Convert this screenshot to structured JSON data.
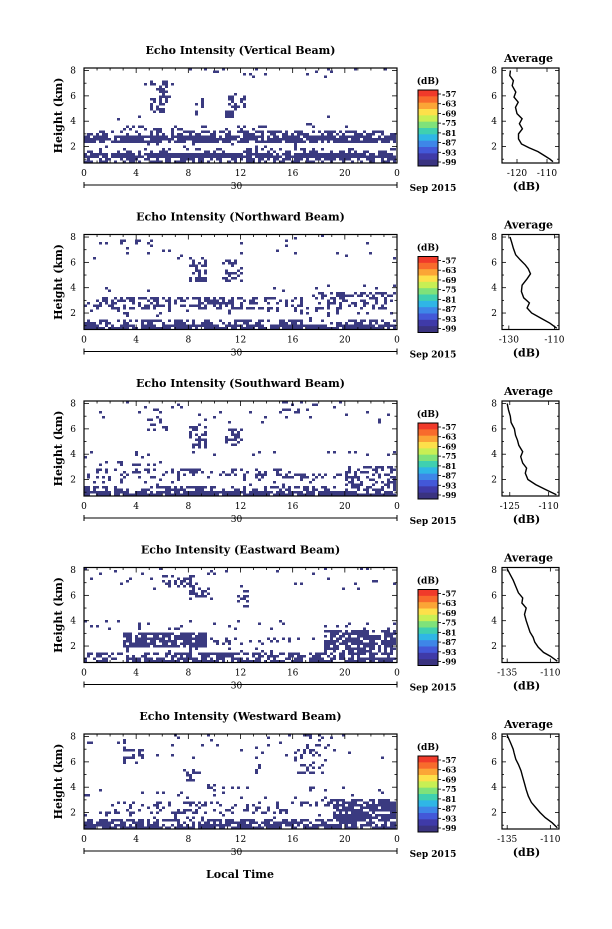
{
  "chart_data": {
    "type": "heatmap",
    "date_label": "Sep 2015",
    "day_label": "30",
    "shared_xlabel": "Local Time",
    "x_ticks": [
      "0",
      "4",
      "8",
      "12",
      "16",
      "20",
      "0"
    ],
    "x_range_hours": [
      0,
      24
    ],
    "y_ticks": [
      "2",
      "4",
      "6",
      "8"
    ],
    "y_range_km": [
      0.7,
      8.2
    ],
    "colorbar": {
      "unit": "(dB)",
      "ticks": [
        "-57",
        "-63",
        "-69",
        "-75",
        "-81",
        "-87",
        "-93",
        "-99"
      ],
      "colors": [
        "#f03a2a",
        "#f86b2c",
        "#fba536",
        "#fde04a",
        "#c8ef54",
        "#7fe27a",
        "#3fd0b0",
        "#2fb6e6",
        "#3e86e8",
        "#4358d8",
        "#3f3aa8",
        "#3a3380"
      ]
    },
    "fill_color": "#3a3a80",
    "panels": [
      {
        "title": "Echo Intensity (Vertical Beam)",
        "ylabel": "Height (km)",
        "avg_title": "Average",
        "avg_ticks": [
          "-120",
          "-110"
        ],
        "avg_xlabel": "(dB)",
        "avg_xlim": [
          -125,
          -106
        ],
        "avg_profile": [
          [
            -108,
            0.8
          ],
          [
            -109,
            1.0
          ],
          [
            -111,
            1.3
          ],
          [
            -113,
            1.6
          ],
          [
            -116,
            1.9
          ],
          [
            -118.5,
            2.2
          ],
          [
            -119.5,
            2.6
          ],
          [
            -119.5,
            3.0
          ],
          [
            -118.2,
            3.4
          ],
          [
            -119.2,
            3.8
          ],
          [
            -118.3,
            4.2
          ],
          [
            -120,
            4.6
          ],
          [
            -120.5,
            5.1
          ],
          [
            -119.6,
            5.5
          ],
          [
            -121,
            5.9
          ],
          [
            -120.4,
            6.3
          ],
          [
            -121.6,
            6.8
          ],
          [
            -121.2,
            7.2
          ],
          [
            -122.4,
            7.6
          ],
          [
            -122.2,
            8.0
          ]
        ],
        "blocks": [
          [
            0.0,
            24.0,
            0.7,
            1.05,
            0.55
          ],
          [
            0.0,
            24.0,
            1.05,
            1.45,
            0.92
          ],
          [
            0.0,
            24.0,
            1.45,
            1.8,
            0.35
          ],
          [
            0.0,
            10.0,
            1.8,
            2.2,
            0.08
          ],
          [
            8.0,
            18.0,
            1.8,
            2.2,
            0.15
          ],
          [
            0.0,
            24.0,
            2.2,
            2.8,
            0.82
          ],
          [
            0.0,
            24.0,
            2.8,
            3.3,
            0.5
          ],
          [
            3.0,
            14.0,
            3.3,
            3.7,
            0.22
          ],
          [
            13.0,
            23.0,
            3.4,
            3.9,
            0.12
          ],
          [
            0.0,
            24.0,
            4.0,
            4.4,
            0.03
          ],
          [
            5.0,
            6.4,
            4.6,
            7.2,
            0.4
          ],
          [
            8.5,
            9.3,
            4.4,
            5.8,
            0.55
          ],
          [
            10.8,
            11.8,
            4.3,
            6.2,
            0.5
          ],
          [
            11.8,
            12.4,
            4.8,
            6.0,
            0.35
          ],
          [
            2.0,
            8.0,
            5.8,
            8.0,
            0.02
          ],
          [
            8.0,
            14.0,
            7.4,
            8.2,
            0.08
          ],
          [
            17.0,
            24.0,
            7.2,
            8.2,
            0.04
          ]
        ]
      },
      {
        "title": "Echo Intensity (Northward Beam)",
        "ylabel": "Height (km)",
        "avg_title": "Average",
        "avg_ticks": [
          "-130",
          "-110"
        ],
        "avg_xlabel": "(dB)",
        "avg_xlim": [
          -133,
          -108
        ],
        "avg_profile": [
          [
            -109,
            0.8
          ],
          [
            -112,
            1.2
          ],
          [
            -116,
            1.6
          ],
          [
            -120,
            2.0
          ],
          [
            -122,
            2.4
          ],
          [
            -121,
            2.8
          ],
          [
            -123.5,
            3.2
          ],
          [
            -124.5,
            3.7
          ],
          [
            -124.2,
            4.2
          ],
          [
            -122,
            4.7
          ],
          [
            -120.5,
            5.1
          ],
          [
            -121.5,
            5.5
          ],
          [
            -122.8,
            5.8
          ],
          [
            -125,
            6.2
          ],
          [
            -127,
            6.6
          ],
          [
            -128,
            7.1
          ],
          [
            -128.8,
            7.6
          ],
          [
            -129.5,
            8.0
          ]
        ],
        "blocks": [
          [
            0.0,
            24.0,
            0.7,
            1.05,
            0.85
          ],
          [
            0.0,
            24.0,
            1.05,
            1.4,
            0.45
          ],
          [
            0.0,
            24.0,
            1.4,
            1.8,
            0.05
          ],
          [
            0.0,
            24.0,
            1.9,
            2.3,
            0.1
          ],
          [
            0.0,
            24.0,
            2.3,
            2.8,
            0.35
          ],
          [
            1.0,
            12.0,
            2.8,
            3.2,
            0.6
          ],
          [
            12.0,
            18.0,
            2.8,
            3.2,
            0.4
          ],
          [
            17.0,
            24.0,
            2.6,
            3.6,
            0.45
          ],
          [
            0.0,
            24.0,
            3.6,
            4.2,
            0.04
          ],
          [
            8.0,
            9.5,
            4.2,
            6.4,
            0.5
          ],
          [
            10.5,
            12.3,
            4.5,
            6.2,
            0.5
          ],
          [
            0.0,
            24.0,
            6.2,
            8.2,
            0.02
          ],
          [
            4.0,
            5.5,
            7.3,
            8.2,
            0.2
          ]
        ]
      },
      {
        "title": "Echo Intensity (Southward Beam)",
        "ylabel": "Height (km)",
        "avg_title": "Average",
        "avg_ticks": [
          "-125",
          "-110"
        ],
        "avg_xlabel": "(dB)",
        "avg_xlim": [
          -128,
          -106
        ],
        "avg_profile": [
          [
            -107,
            0.8
          ],
          [
            -111,
            1.2
          ],
          [
            -115,
            1.6
          ],
          [
            -118,
            2.0
          ],
          [
            -119,
            2.5
          ],
          [
            -118.5,
            2.9
          ],
          [
            -120,
            3.3
          ],
          [
            -120.8,
            3.8
          ],
          [
            -120,
            4.2
          ],
          [
            -121.5,
            4.7
          ],
          [
            -122,
            5.1
          ],
          [
            -122.8,
            5.5
          ],
          [
            -123.2,
            6.0
          ],
          [
            -124.5,
            6.5
          ],
          [
            -124.8,
            7.0
          ],
          [
            -125.5,
            7.5
          ],
          [
            -126,
            8.0
          ]
        ],
        "blocks": [
          [
            0.0,
            24.0,
            0.7,
            1.05,
            0.85
          ],
          [
            0.0,
            24.0,
            1.05,
            1.5,
            0.55
          ],
          [
            0.0,
            24.0,
            1.5,
            2.0,
            0.06
          ],
          [
            0.0,
            16.0,
            2.0,
            2.4,
            0.25
          ],
          [
            15.0,
            22.0,
            2.0,
            2.5,
            0.6
          ],
          [
            20.0,
            24.0,
            1.5,
            3.0,
            0.45
          ],
          [
            1.0,
            10.0,
            2.4,
            2.8,
            0.45
          ],
          [
            10.0,
            17.0,
            2.5,
            2.8,
            0.25
          ],
          [
            1.0,
            6.0,
            3.0,
            3.4,
            0.18
          ],
          [
            0.0,
            24.0,
            3.5,
            4.2,
            0.04
          ],
          [
            8.0,
            9.5,
            4.4,
            6.2,
            0.55
          ],
          [
            10.8,
            12.3,
            4.6,
            6.1,
            0.5
          ],
          [
            4.5,
            6.5,
            5.8,
            7.0,
            0.3
          ],
          [
            0.0,
            24.0,
            6.2,
            8.2,
            0.03
          ],
          [
            15.0,
            18.0,
            7.2,
            8.2,
            0.2
          ]
        ]
      },
      {
        "title": "Echo Intensity (Eastward Beam)",
        "ylabel": "Height (km)",
        "avg_title": "Average",
        "avg_ticks": [
          "-135",
          "-110"
        ],
        "avg_xlabel": "(dB)",
        "avg_xlim": [
          -138,
          -105
        ],
        "avg_profile": [
          [
            -106,
            0.8
          ],
          [
            -110,
            1.2
          ],
          [
            -114,
            1.5
          ],
          [
            -117,
            1.9
          ],
          [
            -119,
            2.3
          ],
          [
            -120,
            2.7
          ],
          [
            -121.8,
            3.1
          ],
          [
            -123,
            3.6
          ],
          [
            -124,
            4.0
          ],
          [
            -125,
            4.5
          ],
          [
            -124,
            5.0
          ],
          [
            -126.5,
            5.4
          ],
          [
            -126,
            5.8
          ],
          [
            -128.5,
            6.2
          ],
          [
            -130,
            6.7
          ],
          [
            -131.5,
            7.2
          ],
          [
            -133.5,
            7.7
          ],
          [
            -135,
            8.1
          ]
        ],
        "blocks": [
          [
            0.0,
            24.0,
            0.7,
            1.05,
            0.7
          ],
          [
            0.0,
            24.0,
            1.05,
            1.5,
            0.5
          ],
          [
            0.0,
            24.0,
            1.5,
            1.9,
            0.05
          ],
          [
            3.0,
            9.5,
            1.9,
            3.0,
            0.82
          ],
          [
            9.5,
            18.0,
            2.0,
            2.6,
            0.18
          ],
          [
            18.5,
            24.0,
            1.2,
            3.2,
            0.7
          ],
          [
            0.0,
            24.0,
            3.2,
            4.0,
            0.06
          ],
          [
            8.0,
            10.0,
            5.6,
            6.6,
            0.45
          ],
          [
            11.8,
            12.6,
            5.0,
            6.4,
            0.5
          ],
          [
            6.0,
            9.0,
            6.6,
            7.6,
            0.3
          ],
          [
            0.0,
            24.0,
            6.4,
            8.2,
            0.03
          ]
        ]
      },
      {
        "title": "Echo Intensity (Westward Beam)",
        "ylabel": "Height (km)",
        "avg_title": "Average",
        "avg_ticks": [
          "-135",
          "-110"
        ],
        "avg_xlabel": "(dB)",
        "avg_xlim": [
          -138,
          -105
        ],
        "avg_profile": [
          [
            -106,
            0.8
          ],
          [
            -109,
            1.2
          ],
          [
            -113,
            1.6
          ],
          [
            -116,
            2.0
          ],
          [
            -118.5,
            2.4
          ],
          [
            -121,
            2.8
          ],
          [
            -122.8,
            3.3
          ],
          [
            -124,
            3.8
          ],
          [
            -125,
            4.3
          ],
          [
            -126,
            4.8
          ],
          [
            -127,
            5.3
          ],
          [
            -128.5,
            5.8
          ],
          [
            -130,
            6.2
          ],
          [
            -131,
            6.7
          ],
          [
            -131.5,
            7.0
          ],
          [
            -133,
            7.5
          ],
          [
            -135,
            8.1
          ]
        ],
        "blocks": [
          [
            0.0,
            24.0,
            0.7,
            1.05,
            0.78
          ],
          [
            0.0,
            24.0,
            1.05,
            1.5,
            0.65
          ],
          [
            0.0,
            24.0,
            1.5,
            1.9,
            0.08
          ],
          [
            1.0,
            16.0,
            1.9,
            2.3,
            0.35
          ],
          [
            2.0,
            10.0,
            2.3,
            2.8,
            0.25
          ],
          [
            10.0,
            17.0,
            2.3,
            2.8,
            0.15
          ],
          [
            19.0,
            24.0,
            1.2,
            3.0,
            0.8
          ],
          [
            16.5,
            19.5,
            2.4,
            3.0,
            0.45
          ],
          [
            0.0,
            24.0,
            3.0,
            4.0,
            0.04
          ],
          [
            9.5,
            10.2,
            3.2,
            4.2,
            0.5
          ],
          [
            7.5,
            9.0,
            4.4,
            5.4,
            0.4
          ],
          [
            16.0,
            18.5,
            5.0,
            7.0,
            0.25
          ],
          [
            3.0,
            4.5,
            5.8,
            7.2,
            0.3
          ],
          [
            13.0,
            13.8,
            4.6,
            7.2,
            0.35
          ],
          [
            17.0,
            19.0,
            7.0,
            8.2,
            0.3
          ],
          [
            0.0,
            24.0,
            6.0,
            8.2,
            0.03
          ]
        ]
      }
    ]
  }
}
